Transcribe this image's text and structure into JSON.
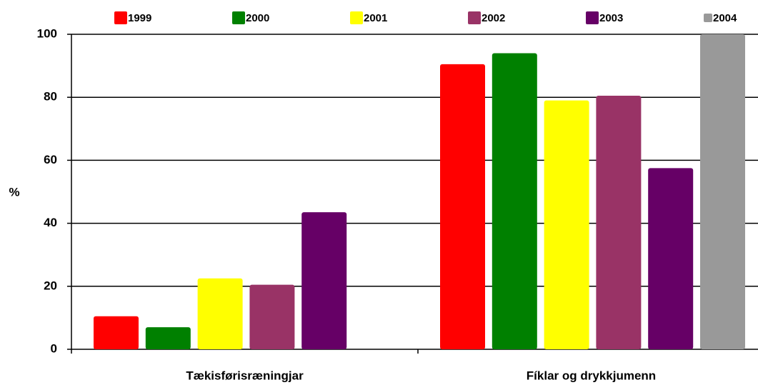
{
  "chart_data": {
    "type": "bar",
    "y_label": "%",
    "categories": [
      "Tækisførisræningjar",
      "Fíklar og drykkjumenn"
    ],
    "series": [
      {
        "name": "1999",
        "color": "#ff0000",
        "values": [
          10.5,
          90.5
        ]
      },
      {
        "name": "2000",
        "color": "#008000",
        "values": [
          7,
          94
        ]
      },
      {
        "name": "2001",
        "color": "#ffff00",
        "values": [
          22.5,
          79
        ]
      },
      {
        "name": "2002",
        "color": "#993366",
        "values": [
          20.5,
          80.5
        ]
      },
      {
        "name": "2003",
        "color": "#660066",
        "values": [
          43.5,
          57.5
        ]
      },
      {
        "name": "2004",
        "color": "#999999",
        "values": [
          null,
          100
        ]
      }
    ],
    "ylim": [
      0,
      100
    ],
    "yticks": [
      0,
      20,
      40,
      60,
      80,
      100
    ],
    "grid": true,
    "legend": "top"
  }
}
